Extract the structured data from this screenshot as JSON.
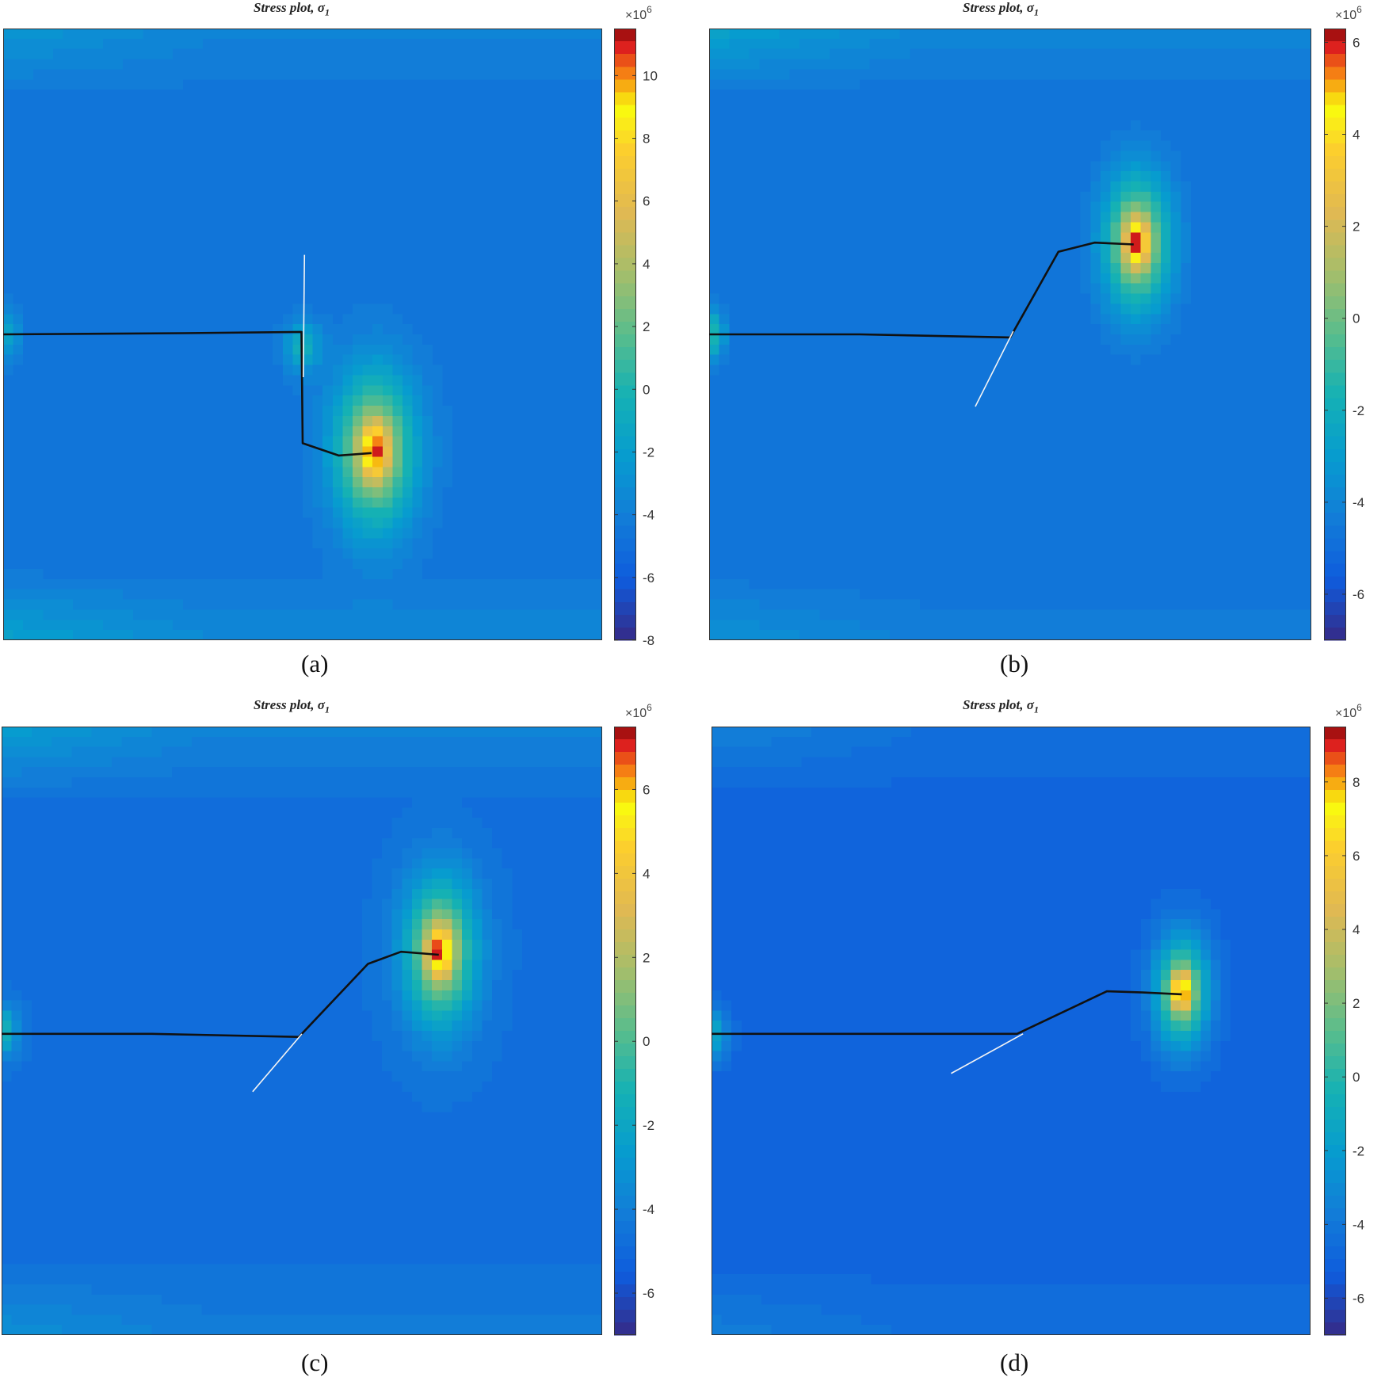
{
  "chart_data": [
    {
      "type": "heatmap",
      "title": "Stress plot, σ",
      "title_subscript": "1",
      "caption": "(a)",
      "colorbar": {
        "range": [
          -8,
          11.5
        ],
        "ticks": [
          -8,
          -6,
          -4,
          -2,
          0,
          2,
          4,
          6,
          8,
          10
        ],
        "tick_labels": [
          "-8",
          "-6",
          "-4",
          "-2",
          "0",
          "2",
          "4",
          "6",
          "8",
          "10"
        ],
        "multiplier": "×10",
        "multiplier_exp": "6"
      },
      "field": {
        "background": -4.6,
        "peak_value": 11.5,
        "peak": [
          0.62,
          0.69
        ],
        "sigma": [
          0.085,
          0.16
        ],
        "secondary": [
          {
            "center": [
              0.5,
              0.52
            ],
            "value": -0.6,
            "sigma": [
              0.03,
              0.04
            ]
          }
        ],
        "left_notch": [
          0.0,
          0.5
        ],
        "band_top": -2.4,
        "band_bottom": -1.6
      },
      "crack": [
        [
          0.0,
          0.5
        ],
        [
          0.3,
          0.498
        ],
        [
          0.498,
          0.496
        ],
        [
          0.5,
          0.678
        ],
        [
          0.56,
          0.698
        ],
        [
          0.615,
          0.694
        ]
      ],
      "guide": [
        [
          0.503,
          0.37
        ],
        [
          0.501,
          0.57
        ]
      ]
    },
    {
      "type": "heatmap",
      "title": "Stress plot, σ",
      "title_subscript": "1",
      "caption": "(b)",
      "colorbar": {
        "range": [
          -7,
          6.3
        ],
        "ticks": [
          -6,
          -4,
          -2,
          0,
          2,
          4,
          6
        ],
        "tick_labels": [
          "-6",
          "-4",
          "-2",
          "0",
          "2",
          "4",
          "6"
        ],
        "multiplier": "×10",
        "multiplier_exp": "6"
      },
      "field": {
        "background": -4.8,
        "peak_value": 6.3,
        "peak": [
          0.71,
          0.35
        ],
        "sigma": [
          0.07,
          0.14
        ],
        "secondary": [],
        "left_notch": [
          0.0,
          0.5
        ],
        "band_top": -2.6,
        "band_bottom": -3.4
      },
      "crack": [
        [
          0.0,
          0.5
        ],
        [
          0.25,
          0.5
        ],
        [
          0.5,
          0.505
        ],
        [
          0.58,
          0.365
        ],
        [
          0.64,
          0.35
        ],
        [
          0.705,
          0.353
        ]
      ],
      "guide": [
        [
          0.505,
          0.495
        ],
        [
          0.442,
          0.618
        ]
      ]
    },
    {
      "type": "heatmap",
      "title": "Stress plot, σ",
      "title_subscript": "1",
      "caption": "(c)",
      "colorbar": {
        "range": [
          -7,
          7.5
        ],
        "ticks": [
          -6,
          -4,
          -2,
          0,
          2,
          4,
          6
        ],
        "tick_labels": [
          "-6",
          "-4",
          "-2",
          "0",
          "2",
          "4",
          "6"
        ],
        "multiplier": "×10",
        "multiplier_exp": "6"
      },
      "field": {
        "background": -4.7,
        "peak_value": 7.5,
        "peak": [
          0.73,
          0.37
        ],
        "sigma": [
          0.075,
          0.15
        ],
        "secondary": [],
        "left_notch": [
          0.0,
          0.5
        ],
        "band_top": -2.5,
        "band_bottom": -3.2
      },
      "crack": [
        [
          0.0,
          0.505
        ],
        [
          0.25,
          0.505
        ],
        [
          0.495,
          0.51
        ],
        [
          0.61,
          0.39
        ],
        [
          0.665,
          0.37
        ],
        [
          0.728,
          0.375
        ]
      ],
      "guide": [
        [
          0.5,
          0.505
        ],
        [
          0.418,
          0.6
        ]
      ]
    },
    {
      "type": "heatmap",
      "title": "Stress plot, σ",
      "title_subscript": "1",
      "caption": "(d)",
      "colorbar": {
        "range": [
          -7,
          9.5
        ],
        "ticks": [
          -6,
          -4,
          -2,
          0,
          2,
          4,
          6,
          8
        ],
        "tick_labels": [
          "-6",
          "-4",
          "-2",
          "0",
          "2",
          "4",
          "6",
          "8"
        ],
        "multiplier": "×10",
        "multiplier_exp": "6"
      },
      "field": {
        "background": -4.9,
        "peak_value": 9.5,
        "peak": [
          0.785,
          0.435
        ],
        "sigma": [
          0.055,
          0.11
        ],
        "secondary": [],
        "left_notch": [
          0.0,
          0.505
        ],
        "band_top": -3.4,
        "band_bottom": -3.6
      },
      "crack": [
        [
          0.0,
          0.505
        ],
        [
          0.25,
          0.505
        ],
        [
          0.51,
          0.505
        ],
        [
          0.66,
          0.435
        ],
        [
          0.72,
          0.437
        ],
        [
          0.785,
          0.44
        ]
      ],
      "guide": [
        [
          0.52,
          0.505
        ],
        [
          0.4,
          0.57
        ]
      ]
    }
  ]
}
